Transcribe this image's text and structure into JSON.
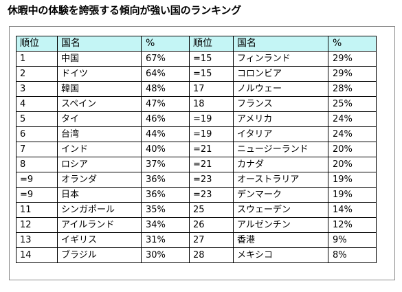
{
  "title": "休暇中の体験を誇張する傾向が強い国のランキング",
  "table": {
    "headers": [
      "順位",
      "国名",
      "%",
      "順位",
      "国名",
      "%"
    ],
    "rows": [
      [
        "1",
        "中国",
        "67%",
        "=15",
        "フィンランド",
        "29%"
      ],
      [
        "2",
        "ドイツ",
        "64%",
        "=15",
        "コロンビア",
        "29%"
      ],
      [
        "3",
        "韓国",
        "48%",
        "17",
        "ノルウェー",
        "28%"
      ],
      [
        "4",
        "スペイン",
        "47%",
        "18",
        "フランス",
        "25%"
      ],
      [
        "5",
        "タイ",
        "46%",
        "=19",
        "アメリカ",
        "24%"
      ],
      [
        "6",
        "台湾",
        "44%",
        "=19",
        "イタリア",
        "24%"
      ],
      [
        "7",
        "インド",
        "40%",
        "=21",
        "ニュージーランド",
        "20%"
      ],
      [
        "8",
        "ロシア",
        "37%",
        "=21",
        "カナダ",
        "20%"
      ],
      [
        "=9",
        "オランダ",
        "36%",
        "=23",
        "オーストラリア",
        "19%"
      ],
      [
        "=9",
        "日本",
        "36%",
        "=23",
        "デンマーク",
        "19%"
      ],
      [
        "11",
        "シンガポール",
        "35%",
        "25",
        "スウェーデン",
        "14%"
      ],
      [
        "12",
        "アイルランド",
        "34%",
        "26",
        "アルゼンチン",
        "12%"
      ],
      [
        "13",
        "イギリス",
        "31%",
        "27",
        "香港",
        "9%"
      ],
      [
        "14",
        "ブラジル",
        "30%",
        "28",
        "メキシコ",
        "8%"
      ]
    ]
  },
  "colors": {
    "header_background": "#c4f5f5",
    "border": "#000000"
  }
}
